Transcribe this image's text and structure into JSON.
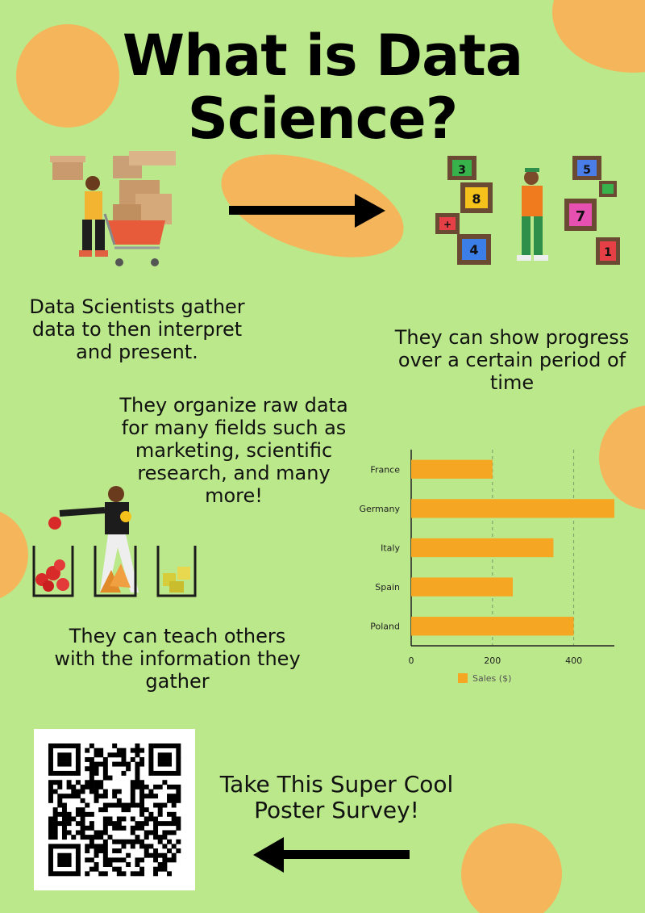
{
  "title_line1": "What is Data",
  "title_line2": "Science?",
  "text_gather": "Data Scientists gather data to then interpret and present.",
  "text_progress": "They can show progress over a certain period of time",
  "text_organize": "They organize raw data for many fields such as marketing, scientific research, and many more!",
  "text_teach": "They can teach others with the information they gather",
  "text_survey": "Take This Super Cool Poster Survey!",
  "colors": {
    "background": "#bbe88a",
    "accent_blob": "#f5b55a",
    "bar": "#f5a623",
    "arrow": "#000000"
  },
  "icons": {
    "right_arrow": "arrow-right-icon",
    "left_arrow": "arrow-left-icon",
    "qr": "qr-code-icon"
  },
  "chart_data": {
    "type": "bar",
    "orientation": "horizontal",
    "categories": [
      "France",
      "Germany",
      "Italy",
      "Spain",
      "Poland"
    ],
    "series": [
      {
        "name": "Sales ($)",
        "values": [
          200,
          500,
          350,
          250,
          400
        ]
      }
    ],
    "xlim": [
      0,
      500
    ],
    "xticks": [
      0,
      200,
      400
    ],
    "grid": "vertical dashed",
    "legend": "bottom"
  }
}
